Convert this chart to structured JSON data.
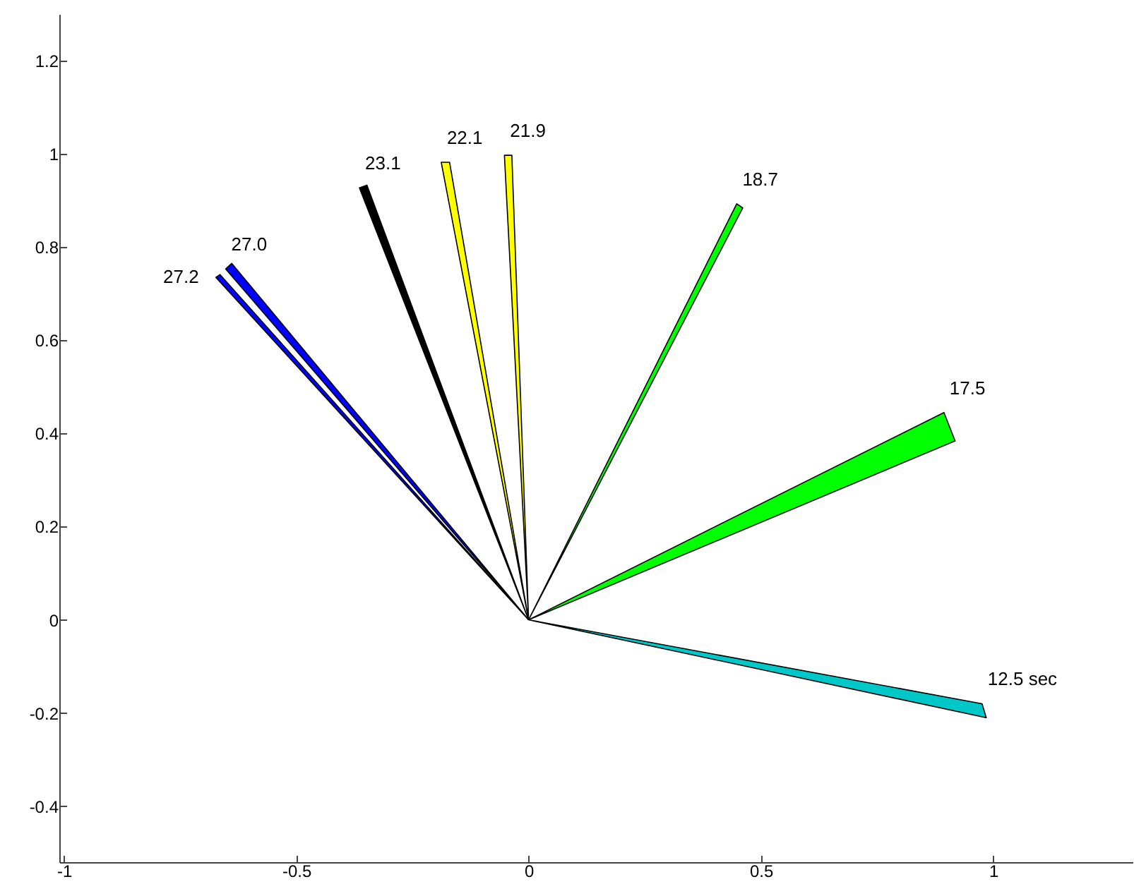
{
  "chart_data": {
    "type": "area",
    "xlim": [
      -1.01,
      1.3
    ],
    "ylim": [
      -0.52,
      1.3
    ],
    "xticks": [
      -1,
      -0.5,
      0,
      0.5,
      1
    ],
    "yticks": [
      -0.4,
      -0.2,
      0,
      0.2,
      0.4,
      0.6,
      0.8,
      1,
      1.2
    ],
    "grid": false,
    "marker": "none",
    "series": [
      {
        "color": "#00c8c8",
        "x": [
          0,
          0.976,
          0.985,
          0
        ],
        "values": [
          0,
          -0.18,
          -0.21,
          0
        ]
      },
      {
        "color": "#00ff00",
        "x": [
          0,
          0.894,
          0.918,
          0
        ],
        "values": [
          0,
          0.445,
          0.384,
          0
        ]
      },
      {
        "color": "#00ff00",
        "x": [
          0,
          0.448,
          0.461,
          0
        ],
        "values": [
          0,
          0.893,
          0.884,
          0
        ]
      },
      {
        "color": "#ffff00",
        "x": [
          0,
          -0.052,
          -0.036,
          0
        ],
        "values": [
          0,
          0.997,
          0.997,
          0
        ]
      },
      {
        "color": "#ffff00",
        "x": [
          0,
          -0.188,
          -0.17,
          0
        ],
        "values": [
          0,
          0.982,
          0.982,
          0
        ]
      },
      {
        "color": "#000000",
        "x": [
          0,
          -0.364,
          -0.348,
          0
        ],
        "values": [
          0,
          0.927,
          0.933,
          0
        ]
      },
      {
        "color": "#0000ff",
        "x": [
          0,
          -0.652,
          -0.639,
          0
        ],
        "values": [
          0,
          0.753,
          0.765,
          0
        ]
      },
      {
        "color": "#0000ff",
        "x": [
          0,
          -0.673,
          -0.664,
          0
        ],
        "values": [
          0,
          0.735,
          0.741,
          0
        ]
      }
    ],
    "annotations": [
      {
        "text": "12.5 sec",
        "x": 0.976,
        "y": -0.18
      },
      {
        "text": "17.5",
        "x": 0.894,
        "y": 0.445
      },
      {
        "text": "18.7",
        "x": 0.448,
        "y": 0.893
      },
      {
        "text": "21.9",
        "x": -0.052,
        "y": 0.997
      },
      {
        "text": "22.1",
        "x": -0.188,
        "y": 0.982
      },
      {
        "text": "23.1",
        "x": -0.364,
        "y": 0.927
      },
      {
        "text": "27.0",
        "x": -0.652,
        "y": 0.753
      },
      {
        "text": "27.2",
        "x": -0.673,
        "y": 0.735
      }
    ]
  }
}
